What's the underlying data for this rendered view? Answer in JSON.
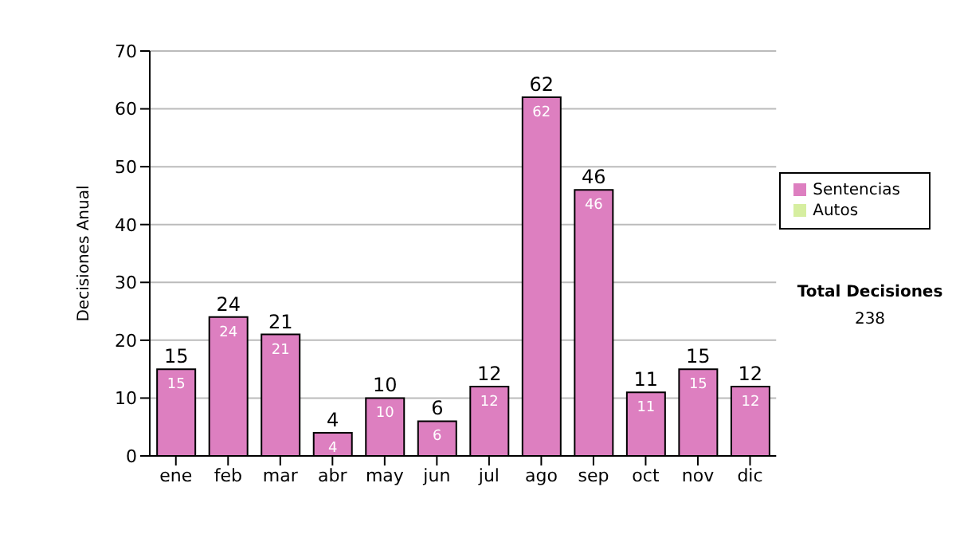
{
  "chart_data": {
    "type": "bar",
    "ylabel": "Decisiones Anual",
    "categories": [
      "ene",
      "feb",
      "mar",
      "abr",
      "may",
      "jun",
      "jul",
      "ago",
      "sep",
      "oct",
      "nov",
      "dic"
    ],
    "series": [
      {
        "name": "Sentencias",
        "color": "#dd7fc0",
        "values": [
          15,
          24,
          21,
          4,
          10,
          6,
          12,
          62,
          46,
          11,
          15,
          12
        ],
        "value_labels": [
          "15",
          "24",
          "21",
          "4",
          "10",
          "6",
          "12",
          "62",
          "46",
          "11",
          "15",
          "12"
        ]
      },
      {
        "name": "Autos",
        "color": "#d6eea0",
        "values": [
          0,
          0,
          0,
          0,
          0,
          0,
          0,
          0,
          0,
          0,
          0,
          0
        ]
      }
    ],
    "stacked": true,
    "totals": [
      "15",
      "24",
      "21",
      "4",
      "10",
      "6",
      "12",
      "62",
      "46",
      "11",
      "15",
      "12"
    ],
    "ylim": [
      0,
      70
    ],
    "yticks": [
      0,
      10,
      20,
      30,
      40,
      50,
      60,
      70
    ],
    "grid": "y",
    "legend": "right",
    "annotations": [
      "Total Decisiones",
      "238"
    ]
  }
}
